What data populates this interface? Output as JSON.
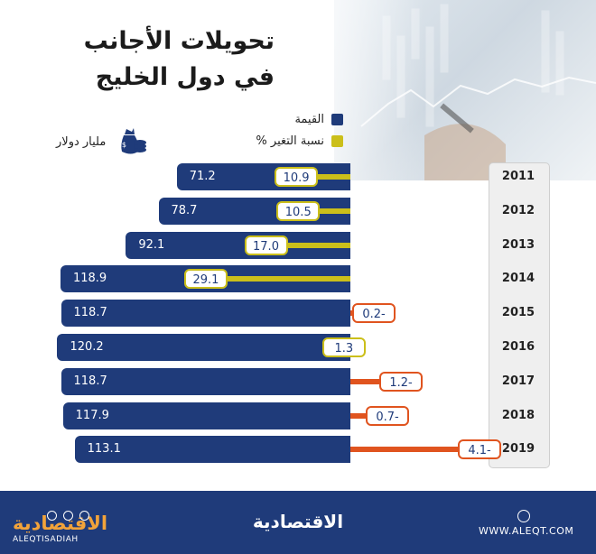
{
  "header": {
    "title_line1": "تحويلات الأجانب",
    "title_line2": "في دول الخليج"
  },
  "legend": {
    "value_label": "القيمة",
    "pct_label": "نسبة التغير %",
    "value_color": "#1f3b7a",
    "pct_color": "#cbbf1a"
  },
  "unit_label": "مليار دولار",
  "unit_icon": "money-bag-icon",
  "colors": {
    "bar": "#1f3b7a",
    "positive": "#cbbf1a",
    "negative": "#e0541f",
    "footer": "#1f3b7a",
    "logo": "#f2a33a"
  },
  "chart_data": {
    "type": "bar",
    "orientation": "horizontal",
    "categories": [
      "2011",
      "2012",
      "2013",
      "2014",
      "2015",
      "2016",
      "2017",
      "2018",
      "2019"
    ],
    "series": [
      {
        "name": "القيمة",
        "values": [
          71.2,
          78.7,
          92.1,
          118.9,
          118.7,
          120.2,
          118.7,
          117.9,
          113.1
        ]
      },
      {
        "name": "نسبة التغير %",
        "values": [
          10.9,
          10.5,
          17.0,
          29.1,
          -0.2,
          1.3,
          -1.2,
          -0.7,
          -4.1
        ]
      }
    ],
    "value_labels": [
      "71.2",
      "78.7",
      "92.1",
      "118.9",
      "118.7",
      "120.2",
      "118.7",
      "117.9",
      "113.1"
    ],
    "pct_labels": [
      "10.9",
      "10.5",
      "17.0",
      "29.1",
      "0.2-",
      "1.3",
      "1.2-",
      "0.7-",
      "4.1-"
    ],
    "title": "تحويلات الأجانب في دول الخليج",
    "xlabel": "",
    "ylabel": "",
    "unit": "مليار دولار",
    "legend_position": "top",
    "grid": false
  },
  "footer": {
    "brand": "الاقتصادية",
    "logo_text": "الاقتصادية",
    "handle": "ALEQTISADIAH",
    "url": "WWW.ALEQT.COM"
  }
}
